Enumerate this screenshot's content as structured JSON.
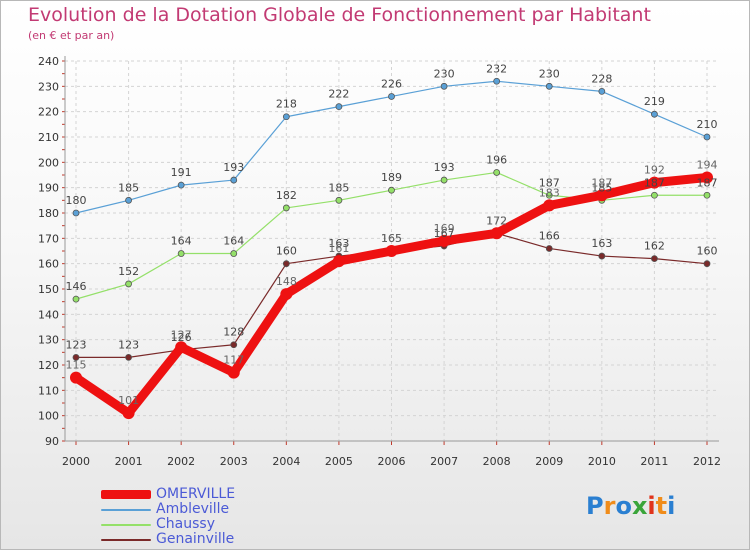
{
  "title": "Evolution de la Dotation Globale de Fonctionnement par Habitant",
  "subtitle": "(en € et par an)",
  "logo": {
    "text": "Proxiti",
    "letters": [
      "P",
      "r",
      "o",
      "x",
      "i",
      "t",
      "i"
    ],
    "colors": [
      "#2a7fd1",
      "#f08c1a",
      "#2a7fd1",
      "#3aa53a",
      "#e0341c",
      "#f08c1a",
      "#2a7fd1"
    ]
  },
  "chart_data": {
    "type": "line",
    "title": "Evolution de la Dotation Globale de Fonctionnement par Habitant",
    "ylabel": "(en € et par an)",
    "xlabel": "",
    "ylim": [
      90,
      240
    ],
    "yticks": [
      90,
      100,
      110,
      120,
      130,
      140,
      150,
      160,
      170,
      180,
      190,
      200,
      210,
      220,
      230,
      240
    ],
    "categories": [
      "2000",
      "2001",
      "2002",
      "2003",
      "2004",
      "2005",
      "2006",
      "2007",
      "2008",
      "2009",
      "2010",
      "2011",
      "2012"
    ],
    "grid": true,
    "legend": "bottom-left",
    "series": [
      {
        "name": "Ambleville",
        "color": "#5aa0d6",
        "values": [
          180,
          185,
          191,
          193,
          218,
          222,
          226,
          230,
          232,
          230,
          228,
          219,
          210
        ]
      },
      {
        "name": "Chaussy",
        "color": "#94e069",
        "values": [
          146,
          152,
          164,
          164,
          182,
          185,
          189,
          193,
          196,
          187,
          185,
          187,
          187
        ]
      },
      {
        "name": "Genainville",
        "color": "#7a2a2a",
        "values": [
          123,
          123,
          126,
          128,
          160,
          163,
          165,
          167,
          172,
          166,
          163,
          162,
          160
        ]
      },
      {
        "name": "OMERVILLE",
        "color": "#ee1111",
        "values": [
          115,
          101,
          127,
          117,
          148,
          161,
          165,
          169,
          172,
          183,
          187,
          192,
          194
        ]
      }
    ],
    "legend_order": [
      "OMERVILLE",
      "Ambleville",
      "Chaussy",
      "Genainville"
    ]
  }
}
